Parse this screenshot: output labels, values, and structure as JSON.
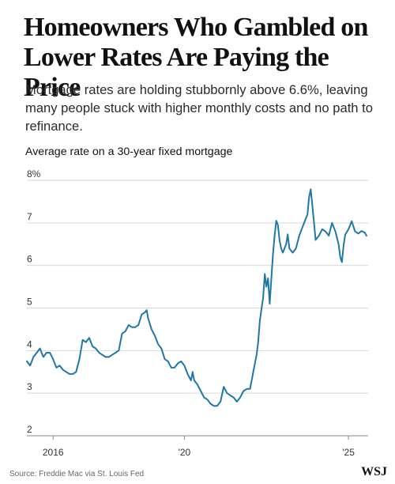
{
  "headline": "Homeowners Who Gambled on Lower Rates Are Paying the Price",
  "dek": "Mortgage rates are holding stubbornly above 6.6%, leaving many people stuck with higher monthly costs and no path to refinance.",
  "source": "Source: Freddie Mac via St. Louis Fed",
  "logo": "WSJ",
  "colors": {
    "line": "#1f78a8",
    "grid": "#d9d9d9",
    "baseline": "#888888",
    "text": "#111111"
  },
  "chart_data": {
    "type": "line",
    "title": "Average rate on a 30-year fixed mortgage",
    "xlabel": "",
    "ylabel": "",
    "ylim": [
      2,
      8
    ],
    "xlim": [
      2015.2,
      2025.6
    ],
    "y_ticks": [
      {
        "value": 8,
        "label": "8%"
      },
      {
        "value": 7,
        "label": "7"
      },
      {
        "value": 6,
        "label": "6"
      },
      {
        "value": 5,
        "label": "5"
      },
      {
        "value": 4,
        "label": "4"
      },
      {
        "value": 3,
        "label": "3"
      },
      {
        "value": 2,
        "label": "2"
      }
    ],
    "x_ticks": [
      {
        "value": 2016,
        "label": "2016"
      },
      {
        "value": 2020,
        "label": "'20"
      },
      {
        "value": 2025,
        "label": "'25"
      }
    ],
    "grid": true,
    "series": [
      {
        "x": [
          2015.2,
          2015.3,
          2015.4,
          2015.5,
          2015.6,
          2015.7,
          2015.8,
          2015.9,
          2016.0,
          2016.1,
          2016.2,
          2016.3,
          2016.4,
          2016.5,
          2016.6,
          2016.7,
          2016.8,
          2016.9,
          2017.0,
          2017.1,
          2017.2,
          2017.3,
          2017.4,
          2017.5,
          2017.6,
          2017.7,
          2017.8,
          2017.9,
          2018.0,
          2018.1,
          2018.2,
          2018.3,
          2018.4,
          2018.5,
          2018.6,
          2018.7,
          2018.8,
          2018.85,
          2018.9,
          2019.0,
          2019.1,
          2019.2,
          2019.3,
          2019.4,
          2019.5,
          2019.6,
          2019.7,
          2019.8,
          2019.9,
          2020.0,
          2020.1,
          2020.2,
          2020.25,
          2020.3,
          2020.4,
          2020.5,
          2020.6,
          2020.7,
          2020.8,
          2020.9,
          2021.0,
          2021.1,
          2021.2,
          2021.3,
          2021.4,
          2021.5,
          2021.6,
          2021.7,
          2021.8,
          2021.9,
          2022.0,
          2022.1,
          2022.2,
          2022.25,
          2022.3,
          2022.4,
          2022.45,
          2022.5,
          2022.55,
          2022.6,
          2022.65,
          2022.7,
          2022.75,
          2022.8,
          2022.85,
          2022.9,
          2022.95,
          2023.0,
          2023.1,
          2023.15,
          2023.2,
          2023.3,
          2023.4,
          2023.5,
          2023.6,
          2023.7,
          2023.75,
          2023.8,
          2023.85,
          2023.9,
          2023.95,
          2024.0,
          2024.1,
          2024.2,
          2024.3,
          2024.4,
          2024.5,
          2024.6,
          2024.7,
          2024.75,
          2024.8,
          2024.85,
          2024.9,
          2025.0,
          2025.1,
          2025.2,
          2025.3,
          2025.4,
          2025.5,
          2025.55
        ],
        "values": [
          3.75,
          3.65,
          3.85,
          3.95,
          4.05,
          3.85,
          3.95,
          3.95,
          3.8,
          3.6,
          3.65,
          3.55,
          3.5,
          3.45,
          3.45,
          3.5,
          3.8,
          4.25,
          4.2,
          4.3,
          4.1,
          4.05,
          3.95,
          3.9,
          3.85,
          3.85,
          3.9,
          3.95,
          4.0,
          4.4,
          4.45,
          4.6,
          4.55,
          4.55,
          4.6,
          4.85,
          4.9,
          4.95,
          4.75,
          4.5,
          4.35,
          4.15,
          4.05,
          3.8,
          3.75,
          3.6,
          3.6,
          3.7,
          3.75,
          3.65,
          3.45,
          3.3,
          3.5,
          3.3,
          3.2,
          3.05,
          2.9,
          2.85,
          2.75,
          2.7,
          2.7,
          2.8,
          3.15,
          3.0,
          2.95,
          2.9,
          2.8,
          2.9,
          3.05,
          3.1,
          3.1,
          3.5,
          3.9,
          4.2,
          4.7,
          5.25,
          5.8,
          5.5,
          5.7,
          5.1,
          5.7,
          6.25,
          6.7,
          7.05,
          6.95,
          6.6,
          6.4,
          6.3,
          6.5,
          6.73,
          6.4,
          6.3,
          6.4,
          6.7,
          6.9,
          7.1,
          7.2,
          7.6,
          7.79,
          7.4,
          7.0,
          6.6,
          6.7,
          6.85,
          6.8,
          6.7,
          7.0,
          6.8,
          6.5,
          6.2,
          6.08,
          6.45,
          6.72,
          6.85,
          7.04,
          6.8,
          6.75,
          6.81,
          6.77,
          6.7
        ]
      }
    ]
  }
}
